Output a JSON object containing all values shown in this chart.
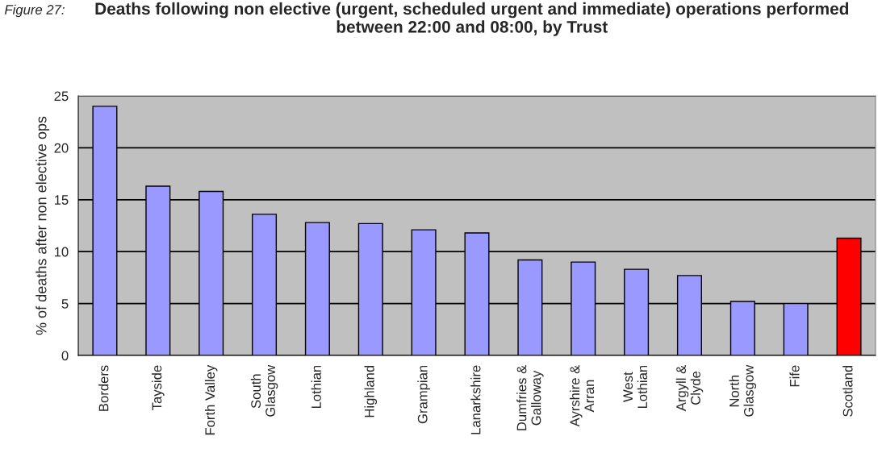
{
  "chart_data": {
    "type": "bar",
    "title": "Deaths following non elective (urgent, scheduled urgent and immediate) operations performed between 22:00 and 08:00, by Trust",
    "ylabel": "% of deaths after non elective ops",
    "annotations": [
      "Figure 27:"
    ],
    "categories": [
      "Borders",
      "Tayside",
      "Forth Valley",
      "South\nGlasgow",
      "Lothian",
      "Highland",
      "Grampian",
      "Lanarkshire",
      "Dumfries &\nGalloway",
      "Ayrshire &\nArran",
      "West\nLothian",
      "Argyll &\nClyde",
      "North\nGlasgow",
      "Fife",
      "Scotland"
    ],
    "values": [
      24.0,
      16.3,
      15.8,
      13.6,
      12.8,
      12.7,
      12.1,
      11.8,
      9.2,
      9.0,
      8.3,
      7.7,
      5.2,
      5.0,
      11.3
    ],
    "colors": [
      "#9999ff",
      "#9999ff",
      "#9999ff",
      "#9999ff",
      "#9999ff",
      "#9999ff",
      "#9999ff",
      "#9999ff",
      "#9999ff",
      "#9999ff",
      "#9999ff",
      "#9999ff",
      "#9999ff",
      "#9999ff",
      "#ff0000"
    ],
    "ylim": [
      0,
      25
    ],
    "yticks": [
      0,
      5,
      10,
      15,
      20,
      25
    ],
    "grid": "y"
  }
}
